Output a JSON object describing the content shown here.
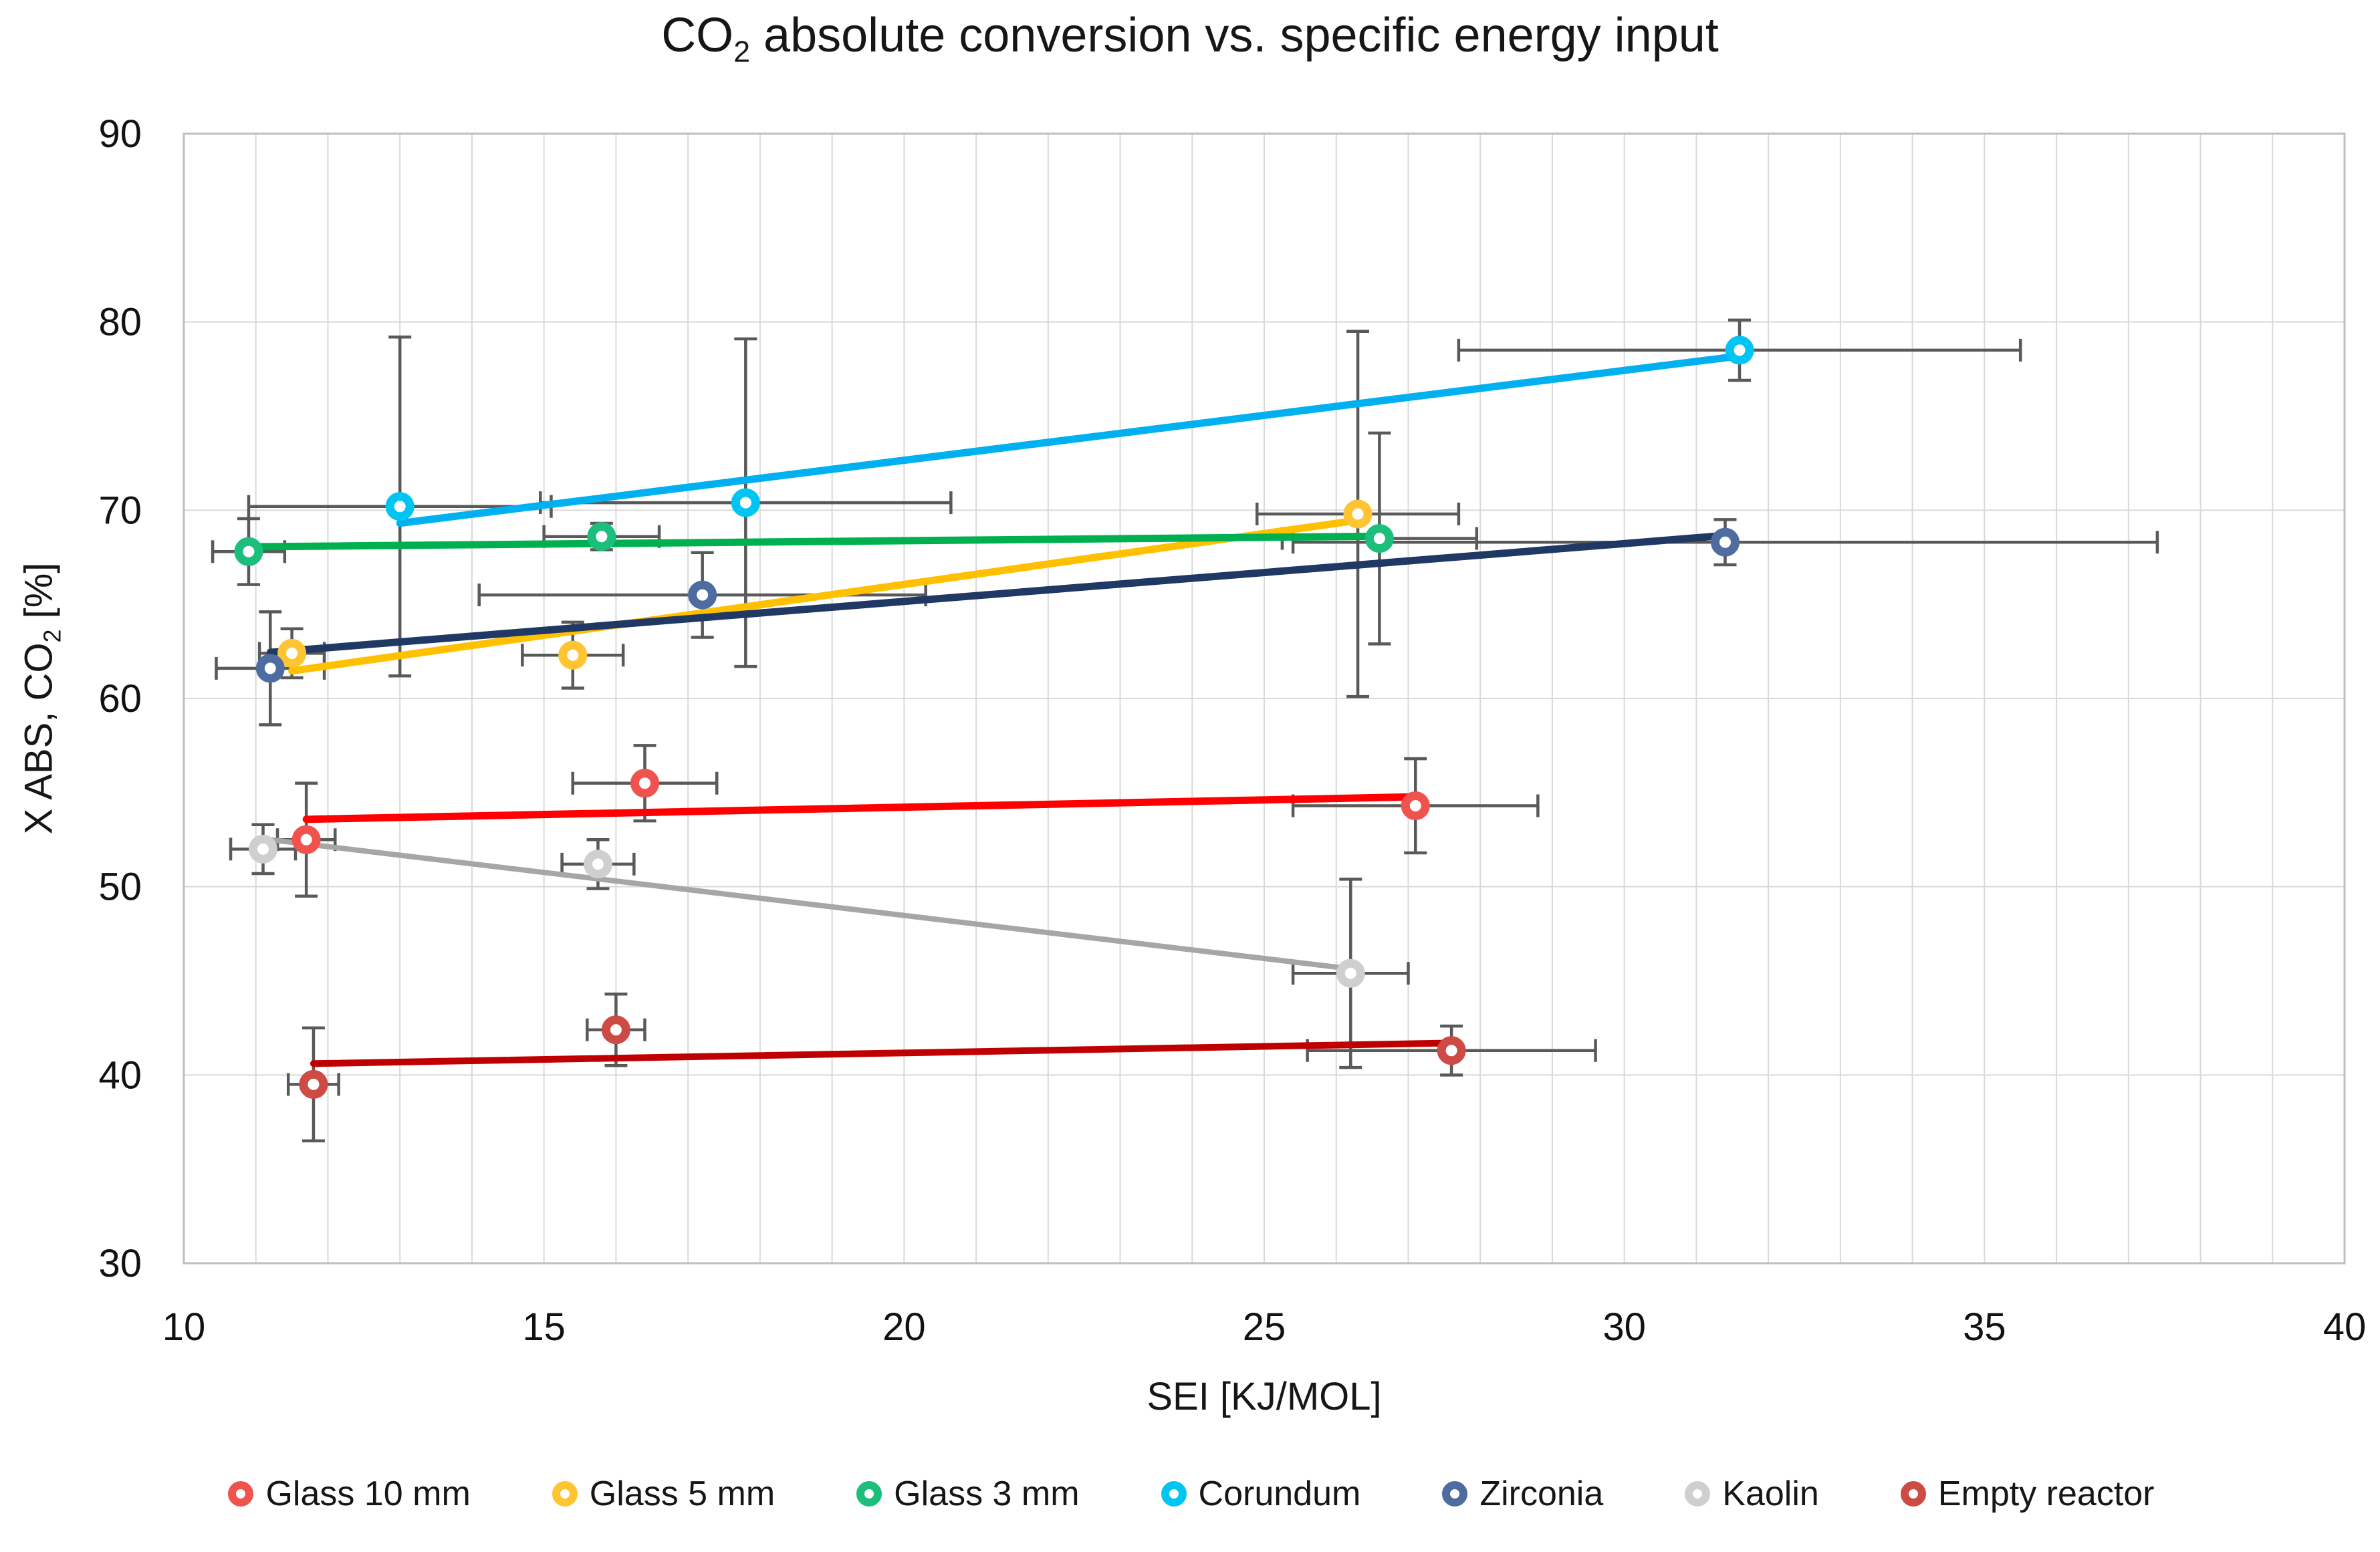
{
  "title": {
    "prefix": "CO",
    "sub": "2",
    "rest": " absolute conversion vs. specific energy input"
  },
  "x_axis": {
    "label": "SEI [KJ/MOL]",
    "min": 10,
    "max": 40,
    "grid_step": 1,
    "ticks": [
      10,
      15,
      20,
      25,
      30,
      35,
      40
    ]
  },
  "y_axis": {
    "label_prefix": "X ABS, CO",
    "label_sub": "2",
    "label_rest": " [%]",
    "min": 30,
    "max": 90,
    "grid_step": 10,
    "ticks": [
      30,
      40,
      50,
      60,
      70,
      80,
      90
    ]
  },
  "colors": {
    "grid": "#D9D9D9",
    "plot_border": "#BFBFBF",
    "error_bar": "#595959",
    "text": "#111111",
    "background": "#FFFFFF"
  },
  "chart_data": {
    "type": "scatter",
    "title": "CO2 absolute conversion vs. specific energy input",
    "xlabel": "SEI [KJ/MOL]",
    "ylabel": "X ABS, CO2 [%]",
    "xlim": [
      10,
      40
    ],
    "ylim": [
      30,
      90
    ],
    "grid": "on",
    "legend_position": "bottom",
    "trendline_type": "linear-least-squares",
    "series": [
      {
        "name": "Glass 10 mm",
        "marker_color": "#F0534E",
        "line_color": "#FF0000",
        "line_width": 11,
        "points": [
          {
            "x": 11.7,
            "y": 52.5,
            "xerr": 0.4,
            "yerr": 3.0
          },
          {
            "x": 16.4,
            "y": 55.5,
            "xerr": 1.0,
            "yerr": 2.0
          },
          {
            "x": 27.1,
            "y": 54.3,
            "xerr": 1.7,
            "yerr": 2.5
          }
        ]
      },
      {
        "name": "Glass 5 mm",
        "marker_color": "#FFC431",
        "line_color": "#FFC000",
        "line_width": 11,
        "points": [
          {
            "x": 11.5,
            "y": 62.4,
            "xerr": 0.45,
            "yerr": 1.3
          },
          {
            "x": 15.4,
            "y": 62.3,
            "xerr": 0.7,
            "yerr": 1.75
          },
          {
            "x": 26.3,
            "y": 69.8,
            "xerr": 1.4,
            "yerr": 9.7
          }
        ]
      },
      {
        "name": "Glass 3 mm",
        "marker_color": "#1CBE7B",
        "line_color": "#00B050",
        "line_width": 11,
        "points": [
          {
            "x": 10.9,
            "y": 67.8,
            "xerr": 0.5,
            "yerr": 1.75
          },
          {
            "x": 15.8,
            "y": 68.6,
            "xerr": 0.8,
            "yerr": 0.7
          },
          {
            "x": 26.6,
            "y": 68.5,
            "xerr": 1.35,
            "yerr": 5.6
          }
        ]
      },
      {
        "name": "Corundum",
        "marker_color": "#00C5F3",
        "line_color": "#00B0F0",
        "line_width": 11,
        "points": [
          {
            "x": 13.0,
            "y": 70.2,
            "xerr": 2.1,
            "yerr": 9.0
          },
          {
            "x": 17.8,
            "y": 70.4,
            "xerr": 2.85,
            "yerr": 8.7
          },
          {
            "x": 31.6,
            "y": 78.5,
            "xerr": 3.9,
            "yerr": 1.6
          }
        ]
      },
      {
        "name": "Zirconia",
        "marker_color": "#4E6CA0",
        "line_color": "#1F3864",
        "line_width": 11,
        "points": [
          {
            "x": 11.2,
            "y": 61.6,
            "xerr": 0.75,
            "yerr": 3.0
          },
          {
            "x": 17.2,
            "y": 65.5,
            "xerr": 3.1,
            "yerr": 2.25
          },
          {
            "x": 31.4,
            "y": 68.3,
            "xerr": 6.0,
            "yerr": 1.2
          }
        ]
      },
      {
        "name": "Kaolin",
        "marker_color": "#CFCFCF",
        "line_color": "#A6A6A6",
        "line_width": 8,
        "points": [
          {
            "x": 11.1,
            "y": 52.0,
            "xerr": 0.45,
            "yerr": 1.3
          },
          {
            "x": 15.75,
            "y": 51.2,
            "xerr": 0.5,
            "yerr": 1.3
          },
          {
            "x": 26.2,
            "y": 45.4,
            "xerr": 0.8,
            "yerr": 5.0
          }
        ]
      },
      {
        "name": "Empty reactor",
        "marker_color": "#CE4A44",
        "line_color": "#C00000",
        "line_width": 10,
        "points": [
          {
            "x": 11.8,
            "y": 39.5,
            "xerr": 0.35,
            "yerr": 3.0
          },
          {
            "x": 16.0,
            "y": 42.4,
            "xerr": 0.4,
            "yerr": 1.9
          },
          {
            "x": 27.6,
            "y": 41.3,
            "xerr": 2.0,
            "yerr": 1.3
          }
        ]
      }
    ]
  }
}
